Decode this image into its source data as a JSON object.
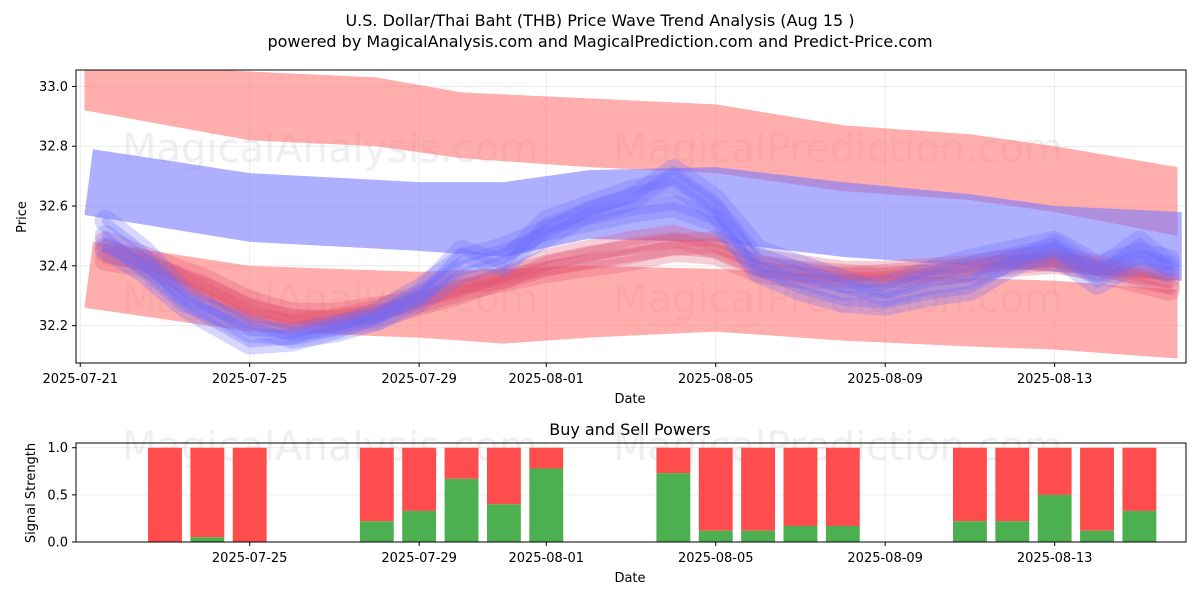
{
  "title_line1": "U.S. Dollar/Thai Baht (THB) Price Wave Trend Analysis (Aug 15 )",
  "title_line2": "powered by MagicalAnalysis.com and MagicalPrediction.com and Predict-Price.com",
  "watermarks": [
    "MagicalAnalysis.com",
    "MagicalPrediction.com"
  ],
  "chart_data": [
    {
      "type": "area",
      "title": "",
      "xlabel": "Date",
      "ylabel": "Price",
      "x_start": "2025-07-21",
      "x_range_days": [
        -0.1,
        26.1
      ],
      "ylim": [
        32.075,
        33.055
      ],
      "yticks": [
        32.2,
        32.4,
        32.6,
        32.8,
        33.0
      ],
      "ytick_labels": [
        "32.2",
        "32.4",
        "32.6",
        "32.8",
        "33.0"
      ],
      "xticks_days": [
        0,
        4,
        8,
        11,
        15,
        19,
        23
      ],
      "xtick_labels": [
        "2025-07-21",
        "2025-07-25",
        "2025-07-29",
        "2025-08-01",
        "2025-08-05",
        "2025-08-09",
        "2025-08-13"
      ],
      "grid": true,
      "bands": [
        {
          "name": "upper-red-channel",
          "color": "#ff7777",
          "opacity": 0.6,
          "upper": [
            [
              0.1,
              33.08
            ],
            [
              4,
              33.05
            ],
            [
              7,
              33.03
            ],
            [
              9,
              32.98
            ],
            [
              12,
              32.96
            ],
            [
              15,
              32.94
            ],
            [
              18,
              32.87
            ],
            [
              21,
              32.84
            ],
            [
              23,
              32.8
            ],
            [
              25.9,
              32.73
            ]
          ],
          "lower": [
            [
              0.1,
              32.92
            ],
            [
              4,
              32.82
            ],
            [
              7,
              32.8
            ],
            [
              9,
              32.76
            ],
            [
              12,
              32.73
            ],
            [
              15,
              32.71
            ],
            [
              18,
              32.65
            ],
            [
              21,
              32.62
            ],
            [
              23,
              32.58
            ],
            [
              25.9,
              32.5
            ]
          ]
        },
        {
          "name": "lower-red-channel",
          "color": "#ff7777",
          "opacity": 0.6,
          "upper": [
            [
              0.3,
              32.48
            ],
            [
              4,
              32.4
            ],
            [
              8,
              32.38
            ],
            [
              12,
              32.4
            ],
            [
              15,
              32.39
            ],
            [
              18,
              32.37
            ],
            [
              21,
              32.36
            ],
            [
              23,
              32.35
            ],
            [
              25.9,
              32.32
            ]
          ],
          "lower": [
            [
              0.1,
              32.26
            ],
            [
              4,
              32.18
            ],
            [
              8,
              32.16
            ],
            [
              10,
              32.14
            ],
            [
              12,
              32.16
            ],
            [
              15,
              32.18
            ],
            [
              18,
              32.15
            ],
            [
              21,
              32.13
            ],
            [
              23,
              32.12
            ],
            [
              25.9,
              32.09
            ]
          ]
        },
        {
          "name": "blue-channel",
          "color": "#7a7aff",
          "opacity": 0.6,
          "upper": [
            [
              0.3,
              32.79
            ],
            [
              4,
              32.71
            ],
            [
              8,
              32.68
            ],
            [
              10,
              32.68
            ],
            [
              12,
              32.72
            ],
            [
              15,
              32.73
            ],
            [
              18,
              32.68
            ],
            [
              21,
              32.64
            ],
            [
              23,
              32.6
            ],
            [
              26,
              32.58
            ]
          ],
          "lower": [
            [
              0.1,
              32.57
            ],
            [
              4,
              32.48
            ],
            [
              8,
              32.45
            ],
            [
              10,
              32.43
            ],
            [
              12,
              32.49
            ],
            [
              15,
              32.48
            ],
            [
              18,
              32.43
            ],
            [
              21,
              32.4
            ],
            [
              23,
              32.38
            ],
            [
              26,
              32.35
            ]
          ]
        }
      ],
      "wave_series": [
        {
          "name": "red-wave-1",
          "color": "#e05070",
          "values": [
            [
              0.6,
              32.45
            ],
            [
              1.5,
              32.42
            ],
            [
              3,
              32.3
            ],
            [
              4,
              32.23
            ],
            [
              5,
              32.2
            ],
            [
              6,
              32.22
            ],
            [
              7,
              32.25
            ],
            [
              8,
              32.3
            ],
            [
              9,
              32.34
            ],
            [
              10,
              32.36
            ],
            [
              11,
              32.4
            ],
            [
              12,
              32.43
            ],
            [
              13,
              32.45
            ],
            [
              14,
              32.47
            ],
            [
              15,
              32.48
            ],
            [
              16,
              32.42
            ],
            [
              17,
              32.4
            ],
            [
              18,
              32.38
            ],
            [
              19,
              32.38
            ],
            [
              20,
              32.39
            ],
            [
              21,
              32.4
            ],
            [
              22,
              32.42
            ],
            [
              23,
              32.43
            ],
            [
              24,
              32.4
            ],
            [
              25.7,
              32.36
            ]
          ]
        },
        {
          "name": "red-wave-2",
          "color": "#e05070",
          "values": [
            [
              0.6,
              32.48
            ],
            [
              1.5,
              32.43
            ],
            [
              3,
              32.35
            ],
            [
              4,
              32.28
            ],
            [
              5,
              32.24
            ],
            [
              6,
              32.24
            ],
            [
              7,
              32.26
            ],
            [
              8,
              32.28
            ],
            [
              9,
              32.32
            ],
            [
              10,
              32.35
            ],
            [
              11,
              32.38
            ],
            [
              12,
              32.4
            ],
            [
              13,
              32.42
            ],
            [
              14,
              32.45
            ],
            [
              15,
              32.44
            ],
            [
              16,
              32.38
            ],
            [
              17,
              32.36
            ],
            [
              18,
              32.36
            ],
            [
              19,
              32.37
            ],
            [
              20,
              32.38
            ],
            [
              21,
              32.39
            ],
            [
              22,
              32.4
            ],
            [
              23,
              32.41
            ],
            [
              24,
              32.39
            ],
            [
              25.7,
              32.34
            ]
          ]
        },
        {
          "name": "red-wave-3",
          "color": "#e05070",
          "values": [
            [
              0.6,
              32.42
            ],
            [
              1.5,
              32.4
            ],
            [
              3,
              32.32
            ],
            [
              4,
              32.25
            ],
            [
              5,
              32.22
            ],
            [
              6,
              32.21
            ],
            [
              7,
              32.23
            ],
            [
              8,
              32.27
            ],
            [
              9,
              32.31
            ],
            [
              10,
              32.36
            ],
            [
              11,
              32.42
            ],
            [
              12,
              32.45
            ],
            [
              13,
              32.48
            ],
            [
              14,
              32.5
            ],
            [
              15,
              32.46
            ],
            [
              16,
              32.4
            ],
            [
              17,
              32.38
            ],
            [
              18,
              32.37
            ],
            [
              19,
              32.36
            ],
            [
              20,
              32.37
            ],
            [
              21,
              32.38
            ],
            [
              22,
              32.41
            ],
            [
              23,
              32.42
            ],
            [
              24,
              32.38
            ],
            [
              25.7,
              32.32
            ]
          ]
        },
        {
          "name": "blue-wave-1",
          "color": "#6a6aff",
          "values": [
            [
              0.6,
              32.55
            ],
            [
              1.5,
              32.45
            ],
            [
              2.5,
              32.3
            ],
            [
              4,
              32.18
            ],
            [
              5,
              32.17
            ],
            [
              6,
              32.2
            ],
            [
              7,
              32.22
            ],
            [
              8,
              32.3
            ],
            [
              9,
              32.45
            ],
            [
              10,
              32.4
            ],
            [
              11,
              32.55
            ],
            [
              12,
              32.6
            ],
            [
              13,
              32.65
            ],
            [
              14,
              32.68
            ],
            [
              15,
              32.58
            ],
            [
              16,
              32.38
            ],
            [
              17,
              32.32
            ],
            [
              18,
              32.28
            ],
            [
              19,
              32.27
            ],
            [
              20,
              32.3
            ],
            [
              21,
              32.32
            ],
            [
              22,
              32.4
            ],
            [
              23,
              32.47
            ],
            [
              24,
              32.38
            ],
            [
              25,
              32.48
            ],
            [
              25.7,
              32.4
            ]
          ]
        },
        {
          "name": "blue-wave-2",
          "color": "#6a6aff",
          "values": [
            [
              0.6,
              32.5
            ],
            [
              1.5,
              32.4
            ],
            [
              2.5,
              32.28
            ],
            [
              4,
              32.2
            ],
            [
              5,
              32.16
            ],
            [
              6,
              32.18
            ],
            [
              7,
              32.22
            ],
            [
              8,
              32.28
            ],
            [
              9,
              32.38
            ],
            [
              10,
              32.42
            ],
            [
              11,
              32.5
            ],
            [
              12,
              32.58
            ],
            [
              13,
              32.62
            ],
            [
              14,
              32.72
            ],
            [
              15,
              32.62
            ],
            [
              16,
              32.45
            ],
            [
              17,
              32.4
            ],
            [
              18,
              32.35
            ],
            [
              19,
              32.3
            ],
            [
              20,
              32.34
            ],
            [
              21,
              32.36
            ],
            [
              22,
              32.42
            ],
            [
              23,
              32.44
            ],
            [
              24,
              32.34
            ],
            [
              25,
              32.42
            ],
            [
              25.7,
              32.38
            ]
          ]
        },
        {
          "name": "blue-wave-3",
          "color": "#6a6aff",
          "values": [
            [
              0.6,
              32.46
            ],
            [
              1.5,
              32.38
            ],
            [
              2.5,
              32.26
            ],
            [
              4,
              32.14
            ],
            [
              5,
              32.15
            ],
            [
              6,
              32.19
            ],
            [
              7,
              32.24
            ],
            [
              8,
              32.32
            ],
            [
              9,
              32.42
            ],
            [
              10,
              32.46
            ],
            [
              11,
              32.52
            ],
            [
              12,
              32.55
            ],
            [
              13,
              32.58
            ],
            [
              14,
              32.6
            ],
            [
              15,
              32.55
            ],
            [
              16,
              32.4
            ],
            [
              17,
              32.36
            ],
            [
              18,
              32.32
            ],
            [
              19,
              32.33
            ],
            [
              20,
              32.38
            ],
            [
              21,
              32.42
            ],
            [
              22,
              32.45
            ],
            [
              23,
              32.48
            ],
            [
              24,
              32.4
            ],
            [
              25,
              32.44
            ],
            [
              25.7,
              32.42
            ]
          ]
        }
      ]
    },
    {
      "type": "bar",
      "title": "Buy and Sell Powers",
      "xlabel": "Date",
      "ylabel": "Signal Strength",
      "x_start": "2025-07-21",
      "x_range_days": [
        -0.1,
        26.1
      ],
      "ylim": [
        0,
        1.05
      ],
      "yticks": [
        0.0,
        0.5,
        1.0
      ],
      "ytick_labels": [
        "0.0",
        "0.5",
        "1.0"
      ],
      "xticks_days": [
        4,
        8,
        11,
        15,
        19,
        23
      ],
      "xtick_labels": [
        "2025-07-25",
        "2025-07-29",
        "2025-08-01",
        "2025-08-05",
        "2025-08-09",
        "2025-08-13"
      ],
      "grid": true,
      "buy_color": "#4caf50",
      "sell_color": "#ff4c4c",
      "bars": [
        {
          "day": 2,
          "buy": 0.0
        },
        {
          "day": 3,
          "buy": 0.05
        },
        {
          "day": 4,
          "buy": 0.0
        },
        {
          "day": 7,
          "buy": 0.22
        },
        {
          "day": 8,
          "buy": 0.33
        },
        {
          "day": 9,
          "buy": 0.67
        },
        {
          "day": 10,
          "buy": 0.4
        },
        {
          "day": 11,
          "buy": 0.78
        },
        {
          "day": 14,
          "buy": 0.73
        },
        {
          "day": 15,
          "buy": 0.12
        },
        {
          "day": 16,
          "buy": 0.12
        },
        {
          "day": 17,
          "buy": 0.17
        },
        {
          "day": 18,
          "buy": 0.17
        },
        {
          "day": 21,
          "buy": 0.22
        },
        {
          "day": 22,
          "buy": 0.22
        },
        {
          "day": 23,
          "buy": 0.5
        },
        {
          "day": 24,
          "buy": 0.12
        },
        {
          "day": 25,
          "buy": 0.33
        }
      ]
    }
  ]
}
